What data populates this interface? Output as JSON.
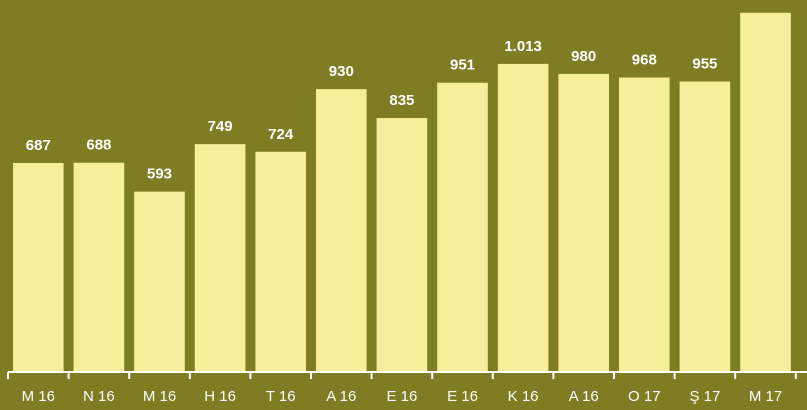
{
  "chart_data": {
    "type": "bar",
    "categories": [
      "M 16",
      "N 16",
      "M 16",
      "H 16",
      "T 16",
      "A 16",
      "E 16",
      "E 16",
      "K 16",
      "A 16",
      "O 17",
      "Ş 17",
      "M 17"
    ],
    "values": [
      687,
      688,
      593,
      749,
      724,
      930,
      835,
      951,
      1013,
      980,
      968,
      955,
      1181
    ],
    "value_labels": [
      "687",
      "688",
      "593",
      "749",
      "724",
      "930",
      "835",
      "951",
      "1.013",
      "980",
      "968",
      "955",
      ""
    ],
    "ylim": [
      0,
      1200
    ],
    "grid": false,
    "legend": "none",
    "colors": {
      "background": "#7f7d24",
      "bar": "#f7ee9c",
      "axis": "#ffffff",
      "text": "#ffffff"
    }
  }
}
